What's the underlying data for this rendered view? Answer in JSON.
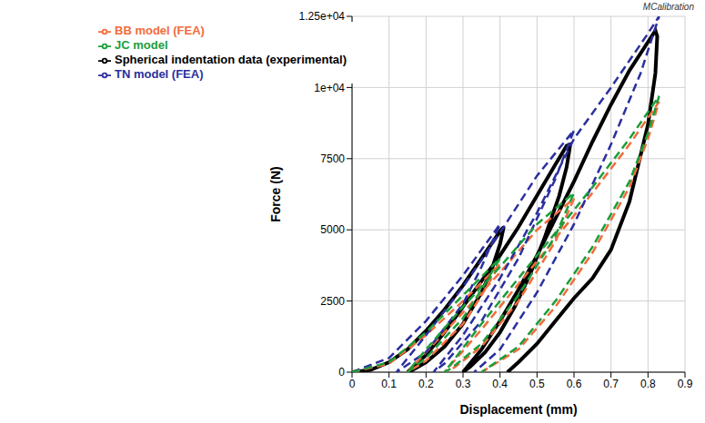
{
  "chart_data": {
    "type": "line",
    "annotation": "MCalibration",
    "x_label": "Displacement (mm)",
    "y_label": "Force (N)",
    "xlim": [
      0,
      0.9
    ],
    "xticks": [
      0,
      0.1,
      0.2,
      0.3,
      0.4,
      0.5,
      0.6,
      0.7,
      0.8,
      0.9
    ],
    "ylim": [
      0,
      12500
    ],
    "yticks": [
      0,
      2500,
      5000,
      7500,
      {
        "value": 10000,
        "label": "1e+04"
      },
      {
        "value": 12500,
        "label": "1.25e+04"
      }
    ],
    "grid": true,
    "legend": "upper left",
    "series": [
      {
        "name": "Spherical indentation data (experimental)",
        "color": "#000000",
        "line_style": "solid",
        "x": [
          0,
          0.05,
          0.1,
          0.15,
          0.2,
          0.25,
          0.3,
          0.35,
          0.4,
          0.41,
          0.4,
          0.38,
          0.35,
          0.3,
          0.25,
          0.2,
          0.16,
          0.15,
          0.2,
          0.25,
          0.3,
          0.35,
          0.4,
          0.45,
          0.5,
          0.55,
          0.58,
          0.59,
          0.58,
          0.56,
          0.52,
          0.48,
          0.44,
          0.4,
          0.36,
          0.32,
          0.3,
          0.35,
          0.4,
          0.45,
          0.5,
          0.55,
          0.6,
          0.65,
          0.7,
          0.75,
          0.8,
          0.82,
          0.825,
          0.82,
          0.8,
          0.75,
          0.7,
          0.65,
          0.6,
          0.55,
          0.5,
          0.45,
          0.42
        ],
        "values": [
          0,
          80,
          350,
          800,
          1450,
          2200,
          3050,
          4000,
          4950,
          5100,
          4500,
          3700,
          2800,
          1700,
          900,
          350,
          50,
          0,
          600,
          1400,
          2300,
          3200,
          4100,
          5100,
          6200,
          7300,
          7950,
          8000,
          7200,
          6200,
          4700,
          3400,
          2300,
          1400,
          700,
          200,
          0,
          800,
          1800,
          2900,
          4100,
          5400,
          6700,
          8100,
          9400,
          10600,
          11600,
          12000,
          11800,
          10500,
          8700,
          6000,
          4300,
          3300,
          2600,
          1800,
          1000,
          350,
          0
        ]
      },
      {
        "name": "BB model (FEA)",
        "color": "#f26b3a",
        "line_style": "dashed",
        "x": [
          0,
          0.1,
          0.2,
          0.3,
          0.4,
          0.35,
          0.3,
          0.2,
          0.15,
          0.2,
          0.3,
          0.4,
          0.5,
          0.6,
          0.55,
          0.45,
          0.35,
          0.27,
          0.25,
          0.35,
          0.45,
          0.55,
          0.65,
          0.75,
          0.83,
          0.8,
          0.75,
          0.65,
          0.55,
          0.45,
          0.35
        ],
        "values": [
          0,
          300,
          1300,
          2500,
          3800,
          2700,
          1700,
          400,
          0,
          700,
          2100,
          3500,
          5000,
          6100,
          4600,
          2500,
          900,
          100,
          0,
          1500,
          3100,
          4700,
          6300,
          8000,
          9500,
          8200,
          6500,
          4200,
          2300,
          800,
          0
        ]
      },
      {
        "name": "TN model (FEA)",
        "color": "#2b2f9e",
        "line_style": "dashed",
        "x": [
          0,
          0.1,
          0.2,
          0.3,
          0.4,
          0.35,
          0.3,
          0.2,
          0.12,
          0.2,
          0.3,
          0.4,
          0.5,
          0.6,
          0.55,
          0.45,
          0.35,
          0.25,
          0.22,
          0.3,
          0.4,
          0.5,
          0.6,
          0.7,
          0.8,
          0.83,
          0.78,
          0.7,
          0.6,
          0.5,
          0.4,
          0.33
        ],
        "values": [
          0,
          500,
          1800,
          3400,
          5200,
          3700,
          2400,
          700,
          0,
          1300,
          3000,
          4900,
          6900,
          8500,
          6800,
          4000,
          1800,
          300,
          0,
          1300,
          3300,
          5600,
          8200,
          10000,
          11900,
          12500,
          10500,
          8000,
          5200,
          2800,
          800,
          0
        ]
      },
      {
        "name": "JC model",
        "color": "#1a9e3a",
        "line_style": "dashed",
        "x": [
          0,
          0.1,
          0.2,
          0.3,
          0.4,
          0.35,
          0.3,
          0.2,
          0.15,
          0.2,
          0.3,
          0.4,
          0.5,
          0.6,
          0.55,
          0.45,
          0.35,
          0.27,
          0.25,
          0.35,
          0.45,
          0.55,
          0.65,
          0.75,
          0.83,
          0.8,
          0.75,
          0.65,
          0.55,
          0.45,
          0.35
        ],
        "values": [
          0,
          350,
          1400,
          2700,
          4000,
          2900,
          1900,
          500,
          0,
          800,
          2300,
          3700,
          5200,
          6300,
          4800,
          2700,
          1000,
          150,
          0,
          1700,
          3300,
          4900,
          6500,
          8200,
          9700,
          8400,
          6700,
          4400,
          2500,
          900,
          0
        ]
      }
    ]
  }
}
